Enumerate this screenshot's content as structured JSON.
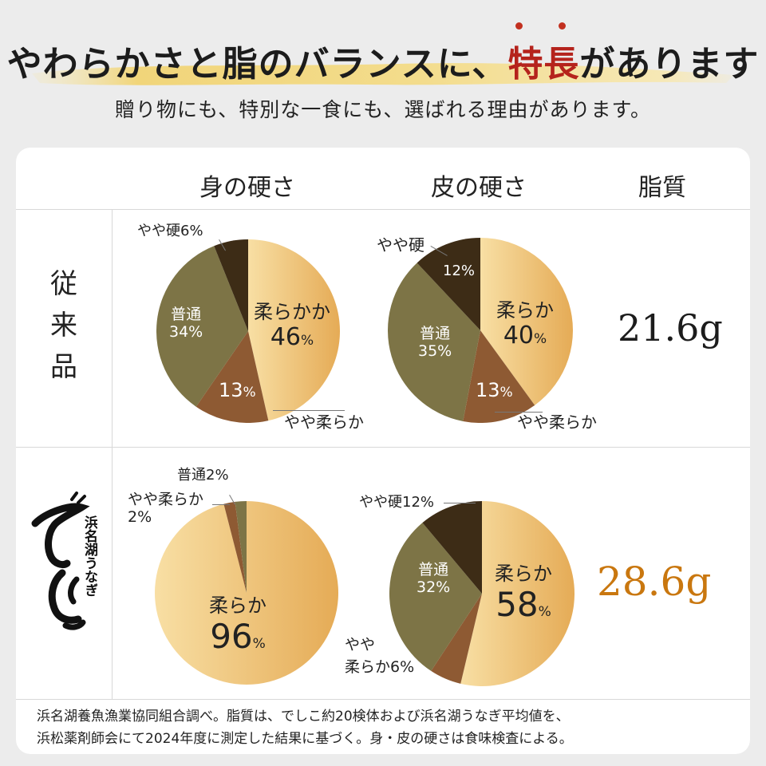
{
  "header": {
    "title_before": "やわらかさと脂のバランスに、",
    "title_accent": "特長",
    "title_after": "があります",
    "subtitle": "贈り物にも、特別な一食にも、選ばれる理由があります。"
  },
  "table": {
    "columns": [
      "身の硬さ",
      "皮の硬さ",
      "脂質"
    ],
    "rows": [
      {
        "label": "従来品",
        "fat": "21.6g",
        "meat": {
          "soft_label": "柔らかか",
          "soft_value": "46",
          "pct": "%",
          "medium_label": "普通",
          "medium_value": "34%",
          "slightly_soft_value": "13",
          "slightly_soft_label": "やや柔らか",
          "slightly_hard_label": "やや硬6%"
        },
        "skin": {
          "soft_label": "柔らか",
          "soft_value": "40",
          "pct": "%",
          "medium_label": "普通",
          "medium_value": "35%",
          "slightly_soft_value": "13",
          "slightly_soft_label": "やや柔らか",
          "slightly_hard_label": "やや硬",
          "slightly_hard_value": "12%"
        }
      },
      {
        "label": "浜名湖うなぎ でしこ",
        "fat": "28.6g",
        "meat": {
          "soft_label": "柔らか",
          "soft_value": "96",
          "pct": "%",
          "medium_label": "普通2%",
          "slightly_soft_label": "やや柔らか",
          "slightly_soft_value": "2%"
        },
        "skin": {
          "soft_label": "柔らか",
          "soft_value": "58",
          "pct": "%",
          "medium_label": "普通",
          "medium_value": "32%",
          "slightly_soft_label_1": "やや",
          "slightly_soft_label_2": "柔らか6%",
          "slightly_hard_label": "やや硬12%"
        }
      }
    ]
  },
  "chart_data": [
    {
      "type": "pie",
      "title": "身の硬さ",
      "row": "従来品",
      "slices": [
        {
          "name": "柔らか",
          "value": 46
        },
        {
          "name": "やや柔らか",
          "value": 13
        },
        {
          "name": "普通",
          "value": 34
        },
        {
          "name": "やや硬",
          "value": 6
        }
      ]
    },
    {
      "type": "pie",
      "title": "皮の硬さ",
      "row": "従来品",
      "slices": [
        {
          "name": "柔らか",
          "value": 40
        },
        {
          "name": "やや柔らか",
          "value": 13
        },
        {
          "name": "普通",
          "value": 35
        },
        {
          "name": "やや硬",
          "value": 12
        }
      ]
    },
    {
      "type": "pie",
      "title": "身の硬さ",
      "row": "でしこ",
      "slices": [
        {
          "name": "柔らか",
          "value": 96
        },
        {
          "name": "やや柔らか",
          "value": 2
        },
        {
          "name": "普通",
          "value": 2
        }
      ]
    },
    {
      "type": "pie",
      "title": "皮の硬さ",
      "row": "でしこ",
      "slices": [
        {
          "name": "柔らか",
          "value": 58
        },
        {
          "name": "やや柔らか",
          "value": 6
        },
        {
          "name": "普通",
          "value": 32
        },
        {
          "name": "やや硬",
          "value": 12
        }
      ]
    }
  ],
  "colors": {
    "soft_light": "#f8dfa4",
    "soft_dark": "#e5ab56",
    "slightly_soft": "#8e5a33",
    "medium": "#7d7446",
    "slightly_hard": "#3d2c16",
    "accent_red": "#b5231c",
    "fat_highlight": "#c9770f"
  },
  "footnote": {
    "line1": "浜名湖養魚漁業協同組合調べ。脂質は、でしこ約20検体および浜名湖うなぎ平均値を、",
    "line2": "浜松薬剤師会にて2024年度に測定した結果に基づく。身・皮の硬さは食味検査による。"
  }
}
